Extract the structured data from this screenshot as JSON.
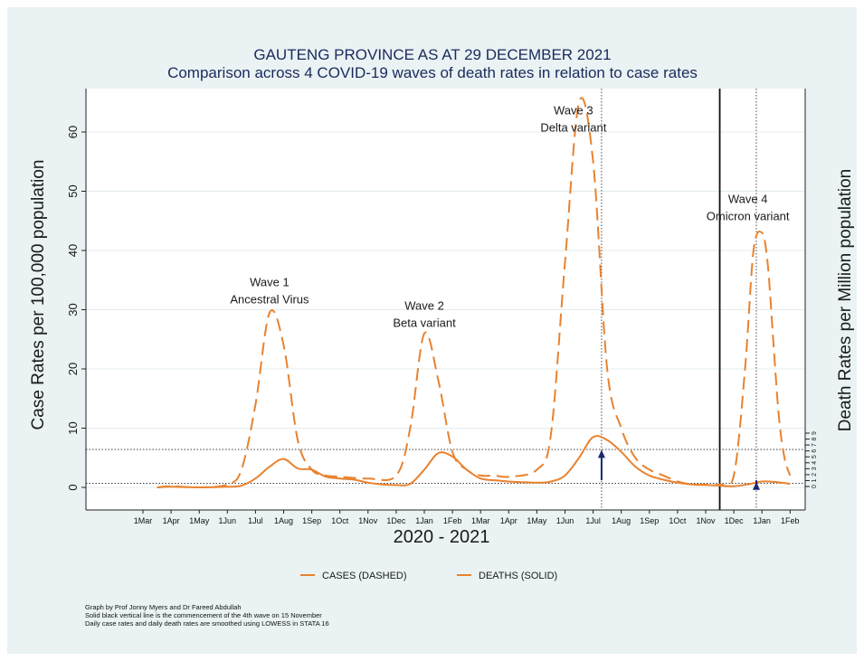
{
  "chart_data": {
    "type": "line",
    "title": "GAUTENG PROVINCE AS AT 29 DECEMBER 2021",
    "subtitle": "Comparison across 4 COVID-19 waves of death rates in relation to case rates",
    "xlabel": "2020 - 2021",
    "ylabel": "Case Rates per 100,000 population",
    "ylabel_right": "Death Rates per Million population",
    "ylim": [
      0,
      65
    ],
    "yticks": [
      "0",
      "10",
      "20",
      "30",
      "40",
      "50",
      "60"
    ],
    "yticks_right": [
      "0",
      "1",
      "2",
      "3",
      "4",
      "5",
      "6",
      "7",
      "8",
      "9"
    ],
    "xticks": [
      "1Mar",
      "1Apr",
      "1May",
      "1Jun",
      "1Jul",
      "1Aug",
      "1Sep",
      "1Oct",
      "1Nov",
      "1Dec",
      "1Jan",
      "1Feb",
      "1Mar",
      "1Apr",
      "1May",
      "1Jun",
      "1Jul",
      "1Aug",
      "1Sep",
      "1Oct",
      "1Nov",
      "1Dec",
      "1Jan",
      "1Feb"
    ],
    "series": [
      {
        "name": "CASES (DASHED)",
        "style": "dashed",
        "color": "#e8822f",
        "x": [
          0.5,
          1,
          2,
          3,
          3.5,
          4,
          4.5,
          5,
          5.5,
          6,
          6.5,
          7,
          8,
          9,
          9.5,
          10,
          10.5,
          11,
          11.5,
          12,
          12.5,
          13,
          14,
          14.5,
          15,
          15.5,
          16,
          16.5,
          17,
          17.5,
          18,
          18.5,
          19,
          19.5,
          20,
          20.5,
          21,
          21.4,
          21.7,
          22,
          22.2,
          22.4,
          22.6,
          22.8,
          23
        ],
        "y": [
          0,
          0.2,
          0,
          0.5,
          3,
          14,
          29.5,
          24,
          8,
          3,
          2,
          1.8,
          1.5,
          2,
          10,
          26,
          18,
          6,
          3,
          2,
          2,
          1.8,
          3,
          9,
          38,
          65,
          55,
          20,
          10,
          5,
          3,
          2,
          1,
          0.5,
          0.5,
          0.5,
          2,
          20,
          40,
          43,
          38,
          25,
          12,
          5,
          2
        ]
      },
      {
        "name": "DEATHS (SOLID)",
        "style": "solid",
        "color": "#e8822f",
        "x": [
          0.5,
          1,
          2,
          3,
          3.5,
          4,
          4.5,
          5,
          5.5,
          6,
          6.5,
          7,
          7.5,
          8,
          8.5,
          9,
          9.5,
          10,
          10.5,
          11,
          11.5,
          12,
          12.5,
          13,
          14,
          14.5,
          15,
          15.5,
          16,
          16.5,
          17,
          17.5,
          18,
          18.5,
          19,
          19.5,
          20,
          20.5,
          21,
          21.5,
          22,
          22.5,
          23
        ],
        "y": [
          0,
          0.1,
          0,
          0.1,
          0.3,
          1.5,
          3.5,
          4.8,
          3.2,
          3,
          1.8,
          1.5,
          1.3,
          0.8,
          0.5,
          0.4,
          0.6,
          3,
          5.8,
          5.2,
          3,
          1.5,
          1.2,
          1,
          0.8,
          1,
          2,
          5,
          8.5,
          8,
          6,
          3.5,
          2,
          1.3,
          0.8,
          0.5,
          0.4,
          0.3,
          0.2,
          0.5,
          1,
          0.9,
          0.6
        ]
      }
    ],
    "reference_lines": {
      "horizontal": [
        6.4,
        0.7
      ],
      "vertical_dotted": [
        16.3,
        21.8
      ],
      "vertical_solid": [
        20.5
      ]
    },
    "annotations": [
      {
        "line1": "Wave 1",
        "line2": "Ancestral Virus",
        "x": 4.5,
        "y": 34
      },
      {
        "line1": "Wave 2",
        "line2": "Beta  variant",
        "x": 10,
        "y": 30
      },
      {
        "line1": "Wave 3",
        "line2": "Delta  variant",
        "x": 15.3,
        "y": 63
      },
      {
        "line1": "Wave 4",
        "line2": "Omicron  variant",
        "x": 21.5,
        "y": 48
      }
    ],
    "legend_position": "bottom",
    "grid": true
  },
  "notes": [
    "Graph by Prof Jonny Myers and Dr Fareed Abdullah",
    "Solid black vertical line is the commencement of the 4th wave on 15 November",
    "Daily case rates and daily death rates are smoothed using LOWESS in STATA 16"
  ]
}
